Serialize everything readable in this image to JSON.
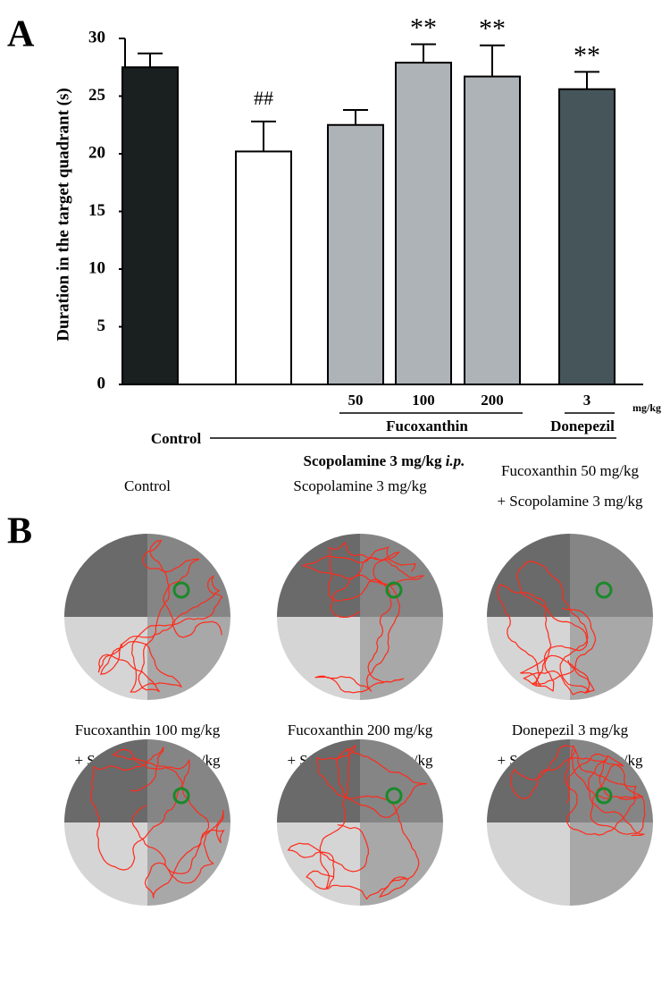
{
  "panel_a_label": "A",
  "panel_b_label": "B",
  "chart_data": {
    "type": "bar",
    "y_label": "Duration in the target quadrant (s)",
    "categories": [
      "Control",
      null,
      "50",
      "100",
      "200",
      "3"
    ],
    "values": [
      27.5,
      20.2,
      22.5,
      27.9,
      26.7,
      25.6
    ],
    "errors": [
      1.2,
      2.6,
      1.3,
      1.6,
      2.7,
      1.5
    ],
    "colors": [
      "#1a1f1f",
      "#ffffff",
      "#aeb3b7",
      "#aeb3b7",
      "#aeb3b7",
      "#46555a"
    ],
    "annotations": [
      null,
      "##",
      null,
      "**",
      "**",
      "**"
    ],
    "ylim": [
      0,
      30
    ],
    "yticks": [
      0,
      5,
      10,
      15,
      20,
      25,
      30
    ],
    "unit_label": "mg/kg",
    "group_labels": [
      "Fucoxanthin",
      "Donepezil"
    ],
    "scopolamine_label": [
      "Scopolamine 3 mg/kg ",
      "i.p."
    ]
  },
  "panel_b": {
    "captions": [
      [
        "Control"
      ],
      [
        "Scopolamine 3 mg/kg"
      ],
      [
        "Fucoxanthin 50 mg/kg",
        "+ Scopolamine 3 mg/kg"
      ],
      [
        "Fucoxanthin 100 mg/kg",
        "+ Scopolamine 3 mg/kg"
      ],
      [
        "Fucoxanthin 200 mg/kg",
        "+ Scopolamine 3 mg/kg"
      ],
      [
        "Donepezil 3 mg/kg",
        "+ Scopolamine 3 mg/kg"
      ]
    ]
  }
}
